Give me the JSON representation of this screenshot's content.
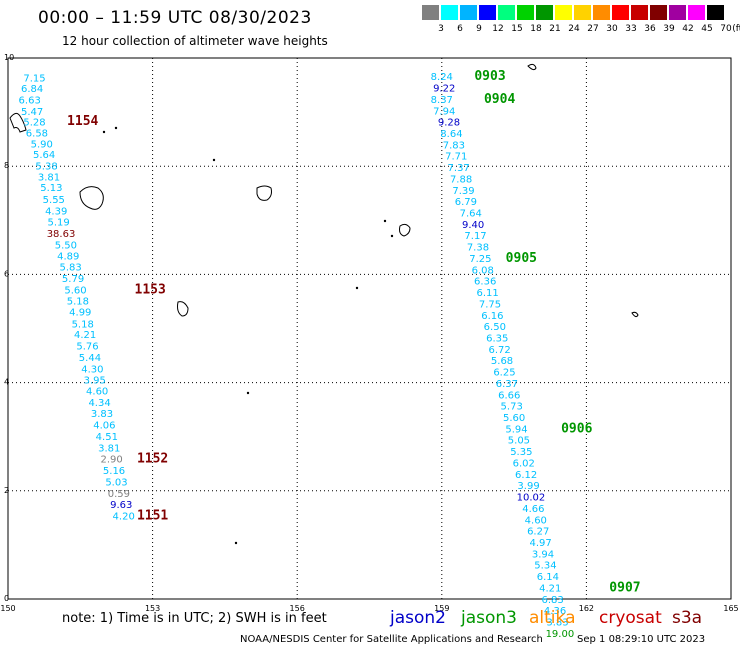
{
  "title": "00:00 – 11:59 UTC 08/30/2023",
  "subtitle": "12 hour collection of altimeter wave heights",
  "legend": {
    "unit": "(ft)",
    "bins": [
      {
        "label": "3",
        "color": "#808080"
      },
      {
        "label": "6",
        "color": "#00ffff"
      },
      {
        "label": "9",
        "color": "#00b4ff"
      },
      {
        "label": "12",
        "color": "#0000ff"
      },
      {
        "label": "15",
        "color": "#00ff7f"
      },
      {
        "label": "18",
        "color": "#00d200"
      },
      {
        "label": "21",
        "color": "#009600"
      },
      {
        "label": "24",
        "color": "#ffff00"
      },
      {
        "label": "27",
        "color": "#ffd200"
      },
      {
        "label": "30",
        "color": "#ff8c00"
      },
      {
        "label": "33",
        "color": "#ff0000"
      },
      {
        "label": "36",
        "color": "#c80000"
      },
      {
        "label": "39",
        "color": "#800000"
      },
      {
        "label": "42",
        "color": "#a000a0"
      },
      {
        "label": "45",
        "color": "#ff00ff"
      },
      {
        "label": "70",
        "color": "#000000"
      }
    ]
  },
  "axes": {
    "x_ticks": [
      "150",
      "153",
      "156",
      "159",
      "162",
      "165"
    ],
    "y_ticks": [
      "0",
      "2",
      "4",
      "6",
      "8",
      "10"
    ],
    "x_range": [
      150,
      165
    ],
    "y_range": [
      0,
      10
    ],
    "grid": true
  },
  "tracks": [
    {
      "color": "#00c0ff",
      "points": [
        {
          "lon": 150.55,
          "lat": 9.57,
          "v": "7.15",
          "c": "#00c0ff"
        },
        {
          "lon": 150.5,
          "lat": 9.37,
          "v": "6.84",
          "c": "#00c0ff"
        },
        {
          "lon": 150.45,
          "lat": 9.16,
          "v": "6.63",
          "c": "#00c0ff"
        },
        {
          "lon": 150.5,
          "lat": 8.95,
          "v": "5.47",
          "c": "#00c0ff"
        },
        {
          "lon": 150.55,
          "lat": 8.75,
          "v": "5.28",
          "c": "#00c0ff"
        },
        {
          "lon": 150.6,
          "lat": 8.55,
          "v": "6.58",
          "c": "#00c0ff"
        },
        {
          "lon": 150.7,
          "lat": 8.35,
          "v": "5.90",
          "c": "#00c0ff"
        },
        {
          "lon": 150.75,
          "lat": 8.15,
          "v": "5.64",
          "c": "#00c0ff"
        },
        {
          "lon": 150.8,
          "lat": 7.94,
          "v": "5.38",
          "c": "#00c0ff"
        },
        {
          "lon": 150.85,
          "lat": 7.74,
          "v": "3.81",
          "c": "#00c0ff"
        },
        {
          "lon": 150.9,
          "lat": 7.54,
          "v": "5.13",
          "c": "#00c0ff"
        },
        {
          "lon": 150.95,
          "lat": 7.32,
          "v": "5.55",
          "c": "#00c0ff"
        },
        {
          "lon": 151.0,
          "lat": 7.11,
          "v": "4.39",
          "c": "#00c0ff"
        },
        {
          "lon": 151.05,
          "lat": 6.9,
          "v": "5.19",
          "c": "#00c0ff"
        },
        {
          "lon": 151.1,
          "lat": 6.69,
          "v": "38.63",
          "c": "#800000"
        },
        {
          "lon": 151.2,
          "lat": 6.48,
          "v": "5.50",
          "c": "#00c0ff"
        },
        {
          "lon": 151.25,
          "lat": 6.28,
          "v": "4.89",
          "c": "#00c0ff"
        },
        {
          "lon": 151.3,
          "lat": 6.07,
          "v": "5.83",
          "c": "#00c0ff"
        },
        {
          "lon": 151.35,
          "lat": 5.86,
          "v": "5.79",
          "c": "#00c0ff"
        },
        {
          "lon": 151.4,
          "lat": 5.65,
          "v": "5.60",
          "c": "#00c0ff"
        },
        {
          "lon": 151.45,
          "lat": 5.44,
          "v": "5.18",
          "c": "#00c0ff"
        },
        {
          "lon": 151.5,
          "lat": 5.24,
          "v": "4.99",
          "c": "#00c0ff"
        },
        {
          "lon": 151.55,
          "lat": 5.02,
          "v": "5.18",
          "c": "#00c0ff"
        },
        {
          "lon": 151.6,
          "lat": 4.82,
          "v": "4.21",
          "c": "#00c0ff"
        },
        {
          "lon": 151.65,
          "lat": 4.61,
          "v": "5.76",
          "c": "#00c0ff"
        },
        {
          "lon": 151.7,
          "lat": 4.4,
          "v": "5.44",
          "c": "#00c0ff"
        },
        {
          "lon": 151.75,
          "lat": 4.19,
          "v": "4.30",
          "c": "#00c0ff"
        },
        {
          "lon": 151.8,
          "lat": 3.98,
          "v": "3.95",
          "c": "#00c0ff"
        },
        {
          "lon": 151.85,
          "lat": 3.78,
          "v": "4.60",
          "c": "#00c0ff"
        },
        {
          "lon": 151.9,
          "lat": 3.57,
          "v": "4.34",
          "c": "#00c0ff"
        },
        {
          "lon": 151.95,
          "lat": 3.36,
          "v": "3.83",
          "c": "#00c0ff"
        },
        {
          "lon": 152.0,
          "lat": 3.15,
          "v": "4.06",
          "c": "#00c0ff"
        },
        {
          "lon": 152.05,
          "lat": 2.94,
          "v": "4.51",
          "c": "#00c0ff"
        },
        {
          "lon": 152.1,
          "lat": 2.73,
          "v": "3.81",
          "c": "#00c0ff"
        },
        {
          "lon": 152.15,
          "lat": 2.52,
          "v": "2.90",
          "c": "#808080"
        },
        {
          "lon": 152.2,
          "lat": 2.31,
          "v": "5.16",
          "c": "#00c0ff"
        },
        {
          "lon": 152.25,
          "lat": 2.1,
          "v": "5.03",
          "c": "#00c0ff"
        },
        {
          "lon": 152.3,
          "lat": 1.89,
          "v": "0.59",
          "c": "#808080"
        },
        {
          "lon": 152.35,
          "lat": 1.68,
          "v": "9.63",
          "c": "#0000c8"
        },
        {
          "lon": 152.4,
          "lat": 1.47,
          "v": "4.20",
          "c": "#00c0ff"
        }
      ]
    },
    {
      "color": "#00c0ff",
      "points": [
        {
          "lon": 159.0,
          "lat": 9.59,
          "v": "8.24",
          "c": "#00c0ff"
        },
        {
          "lon": 159.05,
          "lat": 9.38,
          "v": "9.22",
          "c": "#0000c8"
        },
        {
          "lon": 159.0,
          "lat": 9.17,
          "v": "8.37",
          "c": "#00c0ff"
        },
        {
          "lon": 159.05,
          "lat": 8.96,
          "v": "7.94",
          "c": "#00c0ff"
        },
        {
          "lon": 159.15,
          "lat": 8.75,
          "v": "9.28",
          "c": "#0000c8"
        },
        {
          "lon": 159.2,
          "lat": 8.54,
          "v": "8.64",
          "c": "#00c0ff"
        },
        {
          "lon": 159.25,
          "lat": 8.33,
          "v": "7.83",
          "c": "#00c0ff"
        },
        {
          "lon": 159.3,
          "lat": 8.12,
          "v": "7.71",
          "c": "#00c0ff"
        },
        {
          "lon": 159.35,
          "lat": 7.91,
          "v": "7.37",
          "c": "#00c0ff"
        },
        {
          "lon": 159.4,
          "lat": 7.7,
          "v": "7.88",
          "c": "#00c0ff"
        },
        {
          "lon": 159.45,
          "lat": 7.49,
          "v": "7.39",
          "c": "#00c0ff"
        },
        {
          "lon": 159.5,
          "lat": 7.28,
          "v": "6.79",
          "c": "#00c0ff"
        },
        {
          "lon": 159.6,
          "lat": 7.07,
          "v": "7.64",
          "c": "#00c0ff"
        },
        {
          "lon": 159.65,
          "lat": 6.86,
          "v": "9.40",
          "c": "#0000c8"
        },
        {
          "lon": 159.7,
          "lat": 6.65,
          "v": "7.17",
          "c": "#00c0ff"
        },
        {
          "lon": 159.75,
          "lat": 6.44,
          "v": "7.38",
          "c": "#00c0ff"
        },
        {
          "lon": 159.8,
          "lat": 6.23,
          "v": "7.25",
          "c": "#00c0ff"
        },
        {
          "lon": 159.85,
          "lat": 6.02,
          "v": "6.08",
          "c": "#00c0ff"
        },
        {
          "lon": 159.9,
          "lat": 5.81,
          "v": "6.36",
          "c": "#00c0ff"
        },
        {
          "lon": 159.95,
          "lat": 5.6,
          "v": "6.11",
          "c": "#00c0ff"
        },
        {
          "lon": 160.0,
          "lat": 5.39,
          "v": "7.75",
          "c": "#00c0ff"
        },
        {
          "lon": 160.05,
          "lat": 5.18,
          "v": "6.16",
          "c": "#00c0ff"
        },
        {
          "lon": 160.1,
          "lat": 4.97,
          "v": "6.50",
          "c": "#00c0ff"
        },
        {
          "lon": 160.15,
          "lat": 4.76,
          "v": "6.35",
          "c": "#00c0ff"
        },
        {
          "lon": 160.2,
          "lat": 4.55,
          "v": "6.72",
          "c": "#00c0ff"
        },
        {
          "lon": 160.25,
          "lat": 4.34,
          "v": "5.68",
          "c": "#00c0ff"
        },
        {
          "lon": 160.3,
          "lat": 4.13,
          "v": "6.25",
          "c": "#00c0ff"
        },
        {
          "lon": 160.35,
          "lat": 3.92,
          "v": "6.37",
          "c": "#00c0ff"
        },
        {
          "lon": 160.4,
          "lat": 3.71,
          "v": "6.66",
          "c": "#00c0ff"
        },
        {
          "lon": 160.45,
          "lat": 3.5,
          "v": "5.73",
          "c": "#00c0ff"
        },
        {
          "lon": 160.5,
          "lat": 3.29,
          "v": "5.60",
          "c": "#00c0ff"
        },
        {
          "lon": 160.55,
          "lat": 3.08,
          "v": "5.94",
          "c": "#00c0ff"
        },
        {
          "lon": 160.6,
          "lat": 2.87,
          "v": "5.05",
          "c": "#00c0ff"
        },
        {
          "lon": 160.65,
          "lat": 2.66,
          "v": "5.35",
          "c": "#00c0ff"
        },
        {
          "lon": 160.7,
          "lat": 2.45,
          "v": "6.02",
          "c": "#00c0ff"
        },
        {
          "lon": 160.75,
          "lat": 2.24,
          "v": "6.12",
          "c": "#00c0ff"
        },
        {
          "lon": 160.8,
          "lat": 2.03,
          "v": "3.99",
          "c": "#00c0ff"
        },
        {
          "lon": 160.85,
          "lat": 1.82,
          "v": "10.02",
          "c": "#0000c8"
        },
        {
          "lon": 160.9,
          "lat": 1.61,
          "v": "4.66",
          "c": "#00c0ff"
        },
        {
          "lon": 160.95,
          "lat": 1.4,
          "v": "4.60",
          "c": "#00c0ff"
        },
        {
          "lon": 161.0,
          "lat": 1.19,
          "v": "6.27",
          "c": "#00c0ff"
        },
        {
          "lon": 161.05,
          "lat": 0.98,
          "v": "4.97",
          "c": "#00c0ff"
        },
        {
          "lon": 161.1,
          "lat": 0.77,
          "v": "3.94",
          "c": "#00c0ff"
        },
        {
          "lon": 161.15,
          "lat": 0.56,
          "v": "5.34",
          "c": "#00c0ff"
        },
        {
          "lon": 161.2,
          "lat": 0.35,
          "v": "6.14",
          "c": "#00c0ff"
        },
        {
          "lon": 161.25,
          "lat": 0.14,
          "v": "4.21",
          "c": "#00c0ff"
        },
        {
          "lon": 161.3,
          "lat": -0.07,
          "v": "6.83",
          "c": "#00c0ff"
        },
        {
          "lon": 161.35,
          "lat": -0.28,
          "v": "4.36",
          "c": "#00c0ff"
        },
        {
          "lon": 161.4,
          "lat": -0.49,
          "v": "3.83",
          "c": "#00c0ff"
        },
        {
          "lon": 161.45,
          "lat": -0.7,
          "v": "19.00",
          "c": "#009600"
        }
      ]
    }
  ],
  "time_labels": [
    {
      "text": "1154",
      "lon": 151.55,
      "lat": 8.76,
      "c": "#800000"
    },
    {
      "text": "1153",
      "lon": 152.95,
      "lat": 5.65,
      "c": "#800000"
    },
    {
      "text": "1152",
      "lon": 153.0,
      "lat": 2.52,
      "c": "#800000"
    },
    {
      "text": "1151",
      "lon": 153.0,
      "lat": 1.47,
      "c": "#800000"
    },
    {
      "text": "0903",
      "lon": 160.0,
      "lat": 9.59,
      "c": "#009600"
    },
    {
      "text": "0904",
      "lon": 160.2,
      "lat": 9.17,
      "c": "#009600"
    },
    {
      "text": "0905",
      "lon": 160.65,
      "lat": 6.23,
      "c": "#009600"
    },
    {
      "text": "0906",
      "lon": 161.8,
      "lat": 3.08,
      "c": "#009600"
    },
    {
      "text": "0907",
      "lon": 162.8,
      "lat": 0.14,
      "c": "#009600"
    }
  ],
  "footer": {
    "note": "note:  1) Time is in UTC; 2) SWH is in feet",
    "satellites": [
      {
        "name": "jason2",
        "color": "#0000c8"
      },
      {
        "name": "jason3",
        "color": "#009600"
      },
      {
        "name": "altika",
        "color": "#ff8c00"
      },
      {
        "name": "cryosat",
        "color": "#c80000"
      },
      {
        "name": "s3a",
        "color": "#800000"
      }
    ],
    "credit": "NOAA/NESDIS Center for Satellite Applications and Research",
    "stamp": "Sep  1 08:29:10 UTC 2023"
  }
}
